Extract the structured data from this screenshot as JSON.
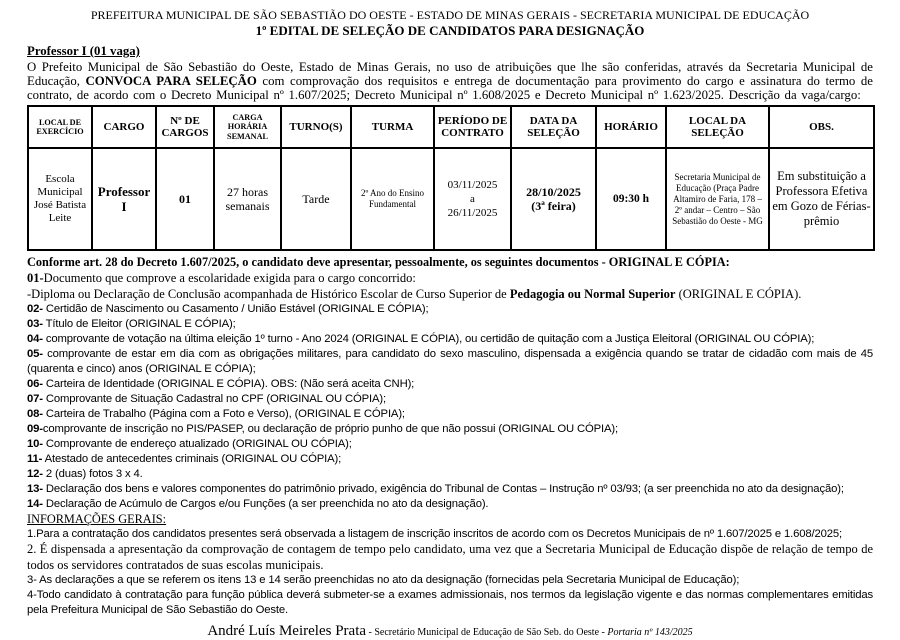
{
  "colors": {
    "ink": "#000000",
    "paper": "#ffffff"
  },
  "header": {
    "line1": "PREFEITURA MUNICIPAL DE SÃO SEBASTIÃO DO OESTE - ESTADO DE MINAS GERAIS - SECRETARIA MUNICIPAL DE EDUCAÇÃO",
    "line2": "1º EDITAL DE SELEÇÃO DE CANDIDATOS PARA DESIGNAÇÃO"
  },
  "vacancy": {
    "title": "Professor I (01 vaga)",
    "intro_pre": "O Prefeito Municipal de São Sebastião do Oeste, Estado de Minas Gerais, no uso de atribuições que lhe são conferidas, através da Secretaria Municipal de Educação, ",
    "intro_bold": "CONVOCA PARA SELEÇÃO",
    "intro_post": " com comprovação dos requisitos e entrega de documentação para provimento do cargo e assinatura do termo de contrato, de acordo com o Decreto Municipal nº 1.607/2025; Decreto Municipal nº 1.608/2025 e Decreto Municipal nº 1.623/2025. Descrição da vaga/cargo:"
  },
  "table": {
    "headers": [
      "LOCAL DE EXERCÍCIO",
      "CARGO",
      "Nº DE CARGOS",
      "CARGA HORÁRIA SEMANAL",
      "TURNO(S)",
      "TURMA",
      "PERÍODO DE CONTRATO",
      "DATA DA SELEÇÃO",
      "HORÁRIO",
      "LOCAL DA SELEÇÃO",
      "OBS."
    ],
    "row": {
      "local_exercicio": "Escola Municipal José Batista Leite",
      "cargo": "Professor I",
      "n_cargos": "01",
      "carga_horaria": "27 horas semanais",
      "turnos": "Tarde",
      "turma": "2º Ano do Ensino Fundamental",
      "periodo_lines": [
        "03/11/2025",
        "a",
        "26/11/2025"
      ],
      "data_selecao_l1": "28/10/2025",
      "data_selecao_l2": "(3ª feira)",
      "horario": "09:30 h",
      "local_selecao": "Secretaria Municipal de Educação (Praça Padre Altamiro de Faria, 178 – 2º andar – Centro – São Sebastião do Oeste - MG",
      "obs": "Em substituição a Professora Efetiva em Gozo de Férias-prêmio"
    }
  },
  "documents": {
    "intro": "Conforme art. 28 do Decreto 1.607/2025, o candidato deve apresentar, pessoalmente, os seguintes documentos - ORIGINAL E CÓPIA:",
    "items": [
      {
        "f": "serif",
        "seg": [
          [
            true,
            "01-"
          ],
          [
            false,
            "Documento que comprove a escolaridade exigida para o cargo concorrido:"
          ]
        ]
      },
      {
        "f": "serif",
        "seg": [
          [
            false,
            "-Diploma ou Declaração de Conclusão acompanhada de Histórico Escolar de Curso Superior de "
          ],
          [
            true,
            "Pedagogia ou Normal Superior"
          ],
          [
            false,
            " (ORIGINAL E CÓPIA)."
          ]
        ]
      },
      {
        "f": "sans",
        "seg": [
          [
            true,
            "02-"
          ],
          [
            false,
            "  Certidão de Nascimento ou Casamento / União Estável (ORIGINAL E CÓPIA);"
          ]
        ]
      },
      {
        "f": "sans",
        "seg": [
          [
            true,
            "03-"
          ],
          [
            false,
            " Título de Eleitor (ORIGINAL E CÓPIA);"
          ]
        ]
      },
      {
        "f": "sans",
        "seg": [
          [
            true,
            "04-"
          ],
          [
            false,
            " comprovante de votação na última eleição  1º turno - Ano 2024 (ORIGINAL E CÓPIA), ou certidão de quitação com a Justiça Eleitoral (ORIGINAL OU CÓPIA);"
          ]
        ]
      },
      {
        "f": "sans",
        "j": true,
        "seg": [
          [
            true,
            "05-"
          ],
          [
            false,
            " comprovante de estar em dia com as obrigações militares, para candidato do sexo masculino, dispensada a exigência quando se tratar de cidadão com mais de 45 (quarenta e cinco) anos (ORIGINAL E CÓPIA);"
          ]
        ]
      },
      {
        "f": "sans",
        "seg": [
          [
            true,
            "06-"
          ],
          [
            false,
            " Carteira de Identidade (ORIGINAL E CÓPIA). OBS: (Não será aceita CNH);"
          ]
        ]
      },
      {
        "f": "sans",
        "seg": [
          [
            true,
            "07-"
          ],
          [
            false,
            " Comprovante de Situação Cadastral no CPF (ORIGINAL  OU CÓPIA);"
          ]
        ]
      },
      {
        "f": "sans",
        "seg": [
          [
            true,
            "08-"
          ],
          [
            false,
            " Carteira de Trabalho (Página com a Foto e Verso), (ORIGINAL E CÓPIA);"
          ]
        ]
      },
      {
        "f": "sans",
        "seg": [
          [
            true,
            "09-"
          ],
          [
            false,
            "comprovante de inscrição no PIS/PASEP, ou declaração de próprio punho de que não possui (ORIGINAL OU CÓPIA);"
          ]
        ]
      },
      {
        "f": "sans",
        "seg": [
          [
            true,
            "10-"
          ],
          [
            false,
            " Comprovante de endereço atualizado (ORIGINAL OU CÓPIA);"
          ]
        ]
      },
      {
        "f": "sans",
        "seg": [
          [
            true,
            "11-"
          ],
          [
            false,
            " Atestado de antecedentes criminais (ORIGINAL OU CÓPIA);"
          ]
        ]
      },
      {
        "f": "sans",
        "seg": [
          [
            true,
            "12-"
          ],
          [
            false,
            " 2 (duas) fotos 3 x 4."
          ]
        ]
      },
      {
        "f": "sans",
        "seg": [
          [
            true,
            "13-"
          ],
          [
            false,
            " Declaração dos bens e valores componentes do patrimônio privado, exigência do Tribunal de Contas – Instrução nº 03/93; (a ser preenchida no ato da designação);"
          ]
        ]
      },
      {
        "f": "sans",
        "seg": [
          [
            true,
            "14-"
          ],
          [
            false,
            " Declaração de Acúmulo de Cargos e/ou Funções (a ser preenchida no ato da designação)."
          ]
        ]
      }
    ]
  },
  "general_info": {
    "heading": "INFORMAÇÕES GERAIS:",
    "items": [
      {
        "f": "sans",
        "seg": [
          [
            false,
            "1.Para a contratação dos candidatos presentes será observada a listagem de inscrição inscritos de acordo com os Decretos Municipais de nº  1.607/2025 e 1.608/2025;"
          ]
        ]
      },
      {
        "f": "serif",
        "j": true,
        "seg": [
          [
            false,
            "2. É dispensada a apresentação da comprovação de contagem de tempo pelo candidato, uma vez que a Secretaria Municipal de Educação dispõe de relação de tempo de todos os servidores contratados de suas escolas municipais."
          ]
        ]
      },
      {
        "f": "sans",
        "seg": [
          [
            false,
            "3- As declarações a que se referem os itens 13 e 14 serão preenchidas no ato da designação (fornecidas pela Secretaria Municipal de Educação);"
          ]
        ]
      },
      {
        "f": "sans",
        "j": true,
        "seg": [
          [
            false,
            "4-Todo candidato à contratação para função pública deverá submeter-se a exames admissionais, nos termos da legislação vigente e das normas complementares emitidas pela Prefeitura Municipal de São Sebastião do Oeste."
          ]
        ]
      }
    ]
  },
  "footer": {
    "name": "André Luís Meireles Prata",
    "sep": " - ",
    "role": "Secretário Municipal de Educação de São Seb. do Oeste",
    "sep2": " - ",
    "portaria": "Portaria nº 143/2025"
  }
}
